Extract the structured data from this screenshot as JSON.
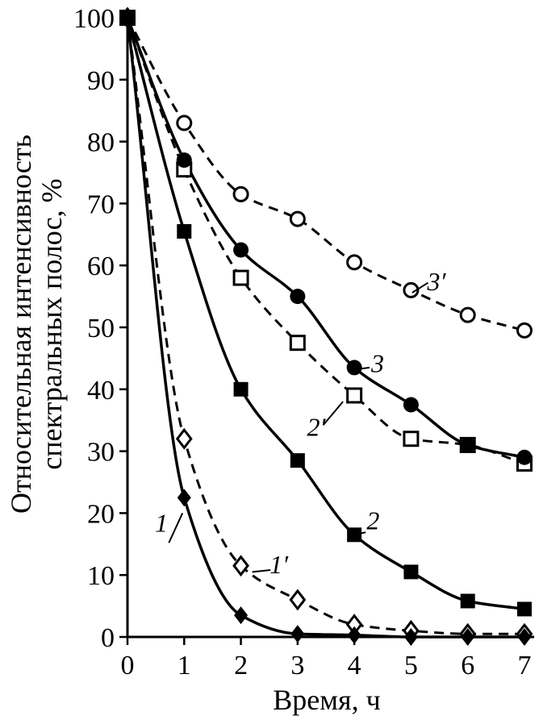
{
  "chart_data": {
    "type": "line",
    "title": "",
    "xlabel": "Время, ч",
    "ylabel": "Относительная интенсивность спектральных полос, %",
    "ylabel_lines": [
      "Относительная интенсивность",
      "спектральных полос, %"
    ],
    "xlim": [
      0,
      7
    ],
    "ylim": [
      0,
      100
    ],
    "xticks": [
      0,
      1,
      2,
      3,
      4,
      5,
      6,
      7
    ],
    "yticks": [
      0,
      10,
      20,
      30,
      40,
      50,
      60,
      70,
      80,
      90,
      100
    ],
    "x": [
      0,
      1,
      2,
      3,
      4,
      5,
      6,
      7
    ],
    "grid": false,
    "legend": "inline-curve-labels",
    "colors": {
      "line": "#000000",
      "background": "#ffffff"
    },
    "series": [
      {
        "name": "1",
        "label": "1",
        "line": "solid",
        "marker": "diamond-filled",
        "values": [
          100,
          22.5,
          3.5,
          0.5,
          0.3,
          0,
          0,
          0
        ],
        "label_pos": [
          0.6,
          17.0
        ],
        "leader": [
          [
            0.73,
            15.2
          ],
          [
            0.97,
            20.0
          ]
        ]
      },
      {
        "name": "1'",
        "label": "1′",
        "line": "dashed",
        "marker": "diamond-open",
        "values": [
          100,
          32,
          11.5,
          6,
          2,
          1,
          0.5,
          0.5
        ],
        "label_pos": [
          2.67,
          10.3
        ],
        "leader": [
          [
            2.52,
            10.8
          ],
          [
            2.2,
            10.5
          ]
        ]
      },
      {
        "name": "2",
        "label": "2",
        "line": "solid",
        "marker": "square-filled",
        "values": [
          100,
          65.5,
          40,
          28.5,
          16.5,
          10.5,
          5.8,
          4.5
        ],
        "label_pos": [
          4.33,
          17.4
        ],
        "leader": [
          [
            4.2,
            16.9
          ],
          [
            3.98,
            16.5
          ]
        ]
      },
      {
        "name": "2'",
        "label": "2′",
        "line": "dashed",
        "marker": "square-open",
        "values": [
          100,
          75.5,
          58,
          47.5,
          39,
          32,
          31,
          28
        ],
        "label_pos": [
          3.33,
          32.5
        ],
        "leader": [
          [
            3.45,
            34.2
          ],
          [
            3.8,
            38.0
          ]
        ]
      },
      {
        "name": "3",
        "label": "3",
        "line": "solid",
        "marker": "circle-filled",
        "values": [
          100,
          77,
          62.5,
          55,
          43.5,
          37.5,
          31,
          29
        ],
        "label_pos": [
          4.41,
          42.8
        ],
        "leader": [
          [
            4.27,
            43.5
          ],
          [
            4.02,
            43.2
          ]
        ]
      },
      {
        "name": "3'",
        "label": "3′",
        "line": "dashed",
        "marker": "circle-open",
        "values": [
          100,
          83,
          71.5,
          67.5,
          60.5,
          56,
          52,
          49.5
        ],
        "label_pos": [
          5.45,
          56.0
        ],
        "leader": [
          [
            5.3,
            57.2
          ],
          [
            5.02,
            55.6
          ]
        ]
      }
    ]
  }
}
